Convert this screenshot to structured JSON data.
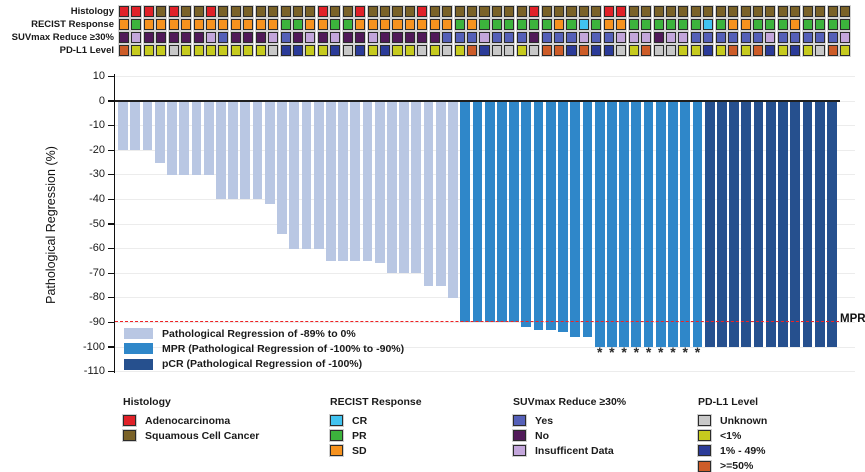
{
  "palette": {
    "adenocarcinoma": "#e02128",
    "squamous": "#7a6228",
    "cr": "#41c3f0",
    "pr": "#3cb33c",
    "sd": "#f6921e",
    "suv_yes": "#5560b8",
    "suv_no": "#511a59",
    "suv_insufficient": "#c3a6db",
    "pdl1_unknown": "#c8c8c8",
    "pdl1_lt1": "#c6ca1e",
    "pdl1_1_49": "#2b3b98",
    "pdl1_ge50": "#cd5c28",
    "bar_light": "#b9c7e3",
    "bar_mpr": "#2f87c9",
    "bar_pcr": "#26508e",
    "mpr_line": "#ee2224"
  },
  "tracks": {
    "rows": [
      {
        "label": "Histology",
        "key": "histology"
      },
      {
        "label": "RECIST Response",
        "key": "recist"
      },
      {
        "label": "SUVmax Reduce ≥30%",
        "key": "suvmax"
      },
      {
        "label": "PD-L1 Level",
        "key": "pdl1"
      }
    ],
    "code_map": {
      "histology": {
        "A": "adenocarcinoma",
        "S": "squamous"
      },
      "recist": {
        "O": "sd",
        "G": "pr",
        "C": "cr"
      },
      "suvmax": {
        "Y": "suv_yes",
        "N": "suv_no",
        "I": "suv_insufficient"
      },
      "pdl1": {
        "U": "pdl1_unknown",
        "L": "pdl1_lt1",
        "M": "pdl1_1_49",
        "H": "pdl1_ge50"
      }
    },
    "histology": "AAASASSASSSSSSSSASSASSSSASSSSSSSSASSSSSAASSSSSSSSSSSSSSSSSS",
    "recist": "OGOOOOOOOOOOOGGOOGGOOOOOOOOGOGGGGGGOGCGOOGGGGGGCGOOGGGOGGGG",
    "suvmax": "NINNNNNIYNNNIYNININNINNNNNYYYIYYYNYYYIYYIIINIIYYYYYYIYYYYYI",
    "pdl1": "HLLLULLLLLLLUMMLLMUMLMLLULULHMUULUHHMHMMULHUULLMLHLHMLMLUHL"
  },
  "chart_data": {
    "type": "bar",
    "title": "",
    "xlabel": "",
    "ylabel": "Pathological Regression (%)",
    "ylim": [
      -110,
      10
    ],
    "yticks": [
      10,
      0,
      -10,
      -20,
      -30,
      -40,
      -50,
      -60,
      -70,
      -80,
      -90,
      -100,
      -110
    ],
    "grid": "horizontal",
    "n_patients": 59,
    "values": [
      -20,
      -20,
      -20,
      -25,
      -30,
      -30,
      -30,
      -30,
      -40,
      -40,
      -40,
      -40,
      -42,
      -54,
      -60,
      -60,
      -60,
      -65,
      -65,
      -65,
      -65,
      -66,
      -70,
      -70,
      -70,
      -75,
      -75,
      -80,
      -90,
      -90,
      -90,
      -90,
      -90,
      -92,
      -93,
      -93,
      -94,
      -96,
      -96,
      -100,
      -100,
      -100,
      -100,
      -100,
      -100,
      -100,
      -100,
      -100,
      -100,
      -100,
      -100,
      -100,
      -100,
      -100,
      -100,
      -100,
      -100,
      -100,
      -100
    ],
    "group_counts": {
      "light": 28,
      "mpr": 20,
      "pcr": 11
    },
    "group_keys": {
      "light": "bar_light",
      "mpr": "bar_mpr",
      "pcr": "bar_pcr"
    },
    "asterisk_indices": [
      39,
      40,
      41,
      42,
      43,
      44,
      45,
      46,
      47
    ],
    "asterisk_symbol": "*",
    "reference_line": {
      "y": -90,
      "label": "MPR"
    },
    "legend": [
      {
        "key": "bar_light",
        "label": "Pathological Regression of -89% to 0%"
      },
      {
        "key": "bar_mpr",
        "label": "MPR (Pathological Regression of -100% to -90%)"
      },
      {
        "key": "bar_pcr",
        "label": "pCR (Pathological Regression of -100%)"
      }
    ]
  },
  "bottom_legend": [
    {
      "title": "Histology",
      "items": [
        {
          "key": "adenocarcinoma",
          "label": "Adenocarcinoma"
        },
        {
          "key": "squamous",
          "label": "Squamous Cell Cancer"
        }
      ]
    },
    {
      "title": "RECIST Response",
      "items": [
        {
          "key": "cr",
          "label": "CR"
        },
        {
          "key": "pr",
          "label": "PR"
        },
        {
          "key": "sd",
          "label": "SD"
        }
      ]
    },
    {
      "title": "SUVmax Reduce ≥30%",
      "items": [
        {
          "key": "suv_yes",
          "label": "Yes"
        },
        {
          "key": "suv_no",
          "label": "No"
        },
        {
          "key": "suv_insufficient",
          "label": "Insufficent Data"
        }
      ]
    },
    {
      "title": "PD-L1 Level",
      "items": [
        {
          "key": "pdl1_unknown",
          "label": "Unknown"
        },
        {
          "key": "pdl1_lt1",
          "label": "<1%"
        },
        {
          "key": "pdl1_1_49",
          "label": "1% - 49%"
        },
        {
          "key": "pdl1_ge50",
          "label": ">=50%"
        }
      ]
    }
  ]
}
